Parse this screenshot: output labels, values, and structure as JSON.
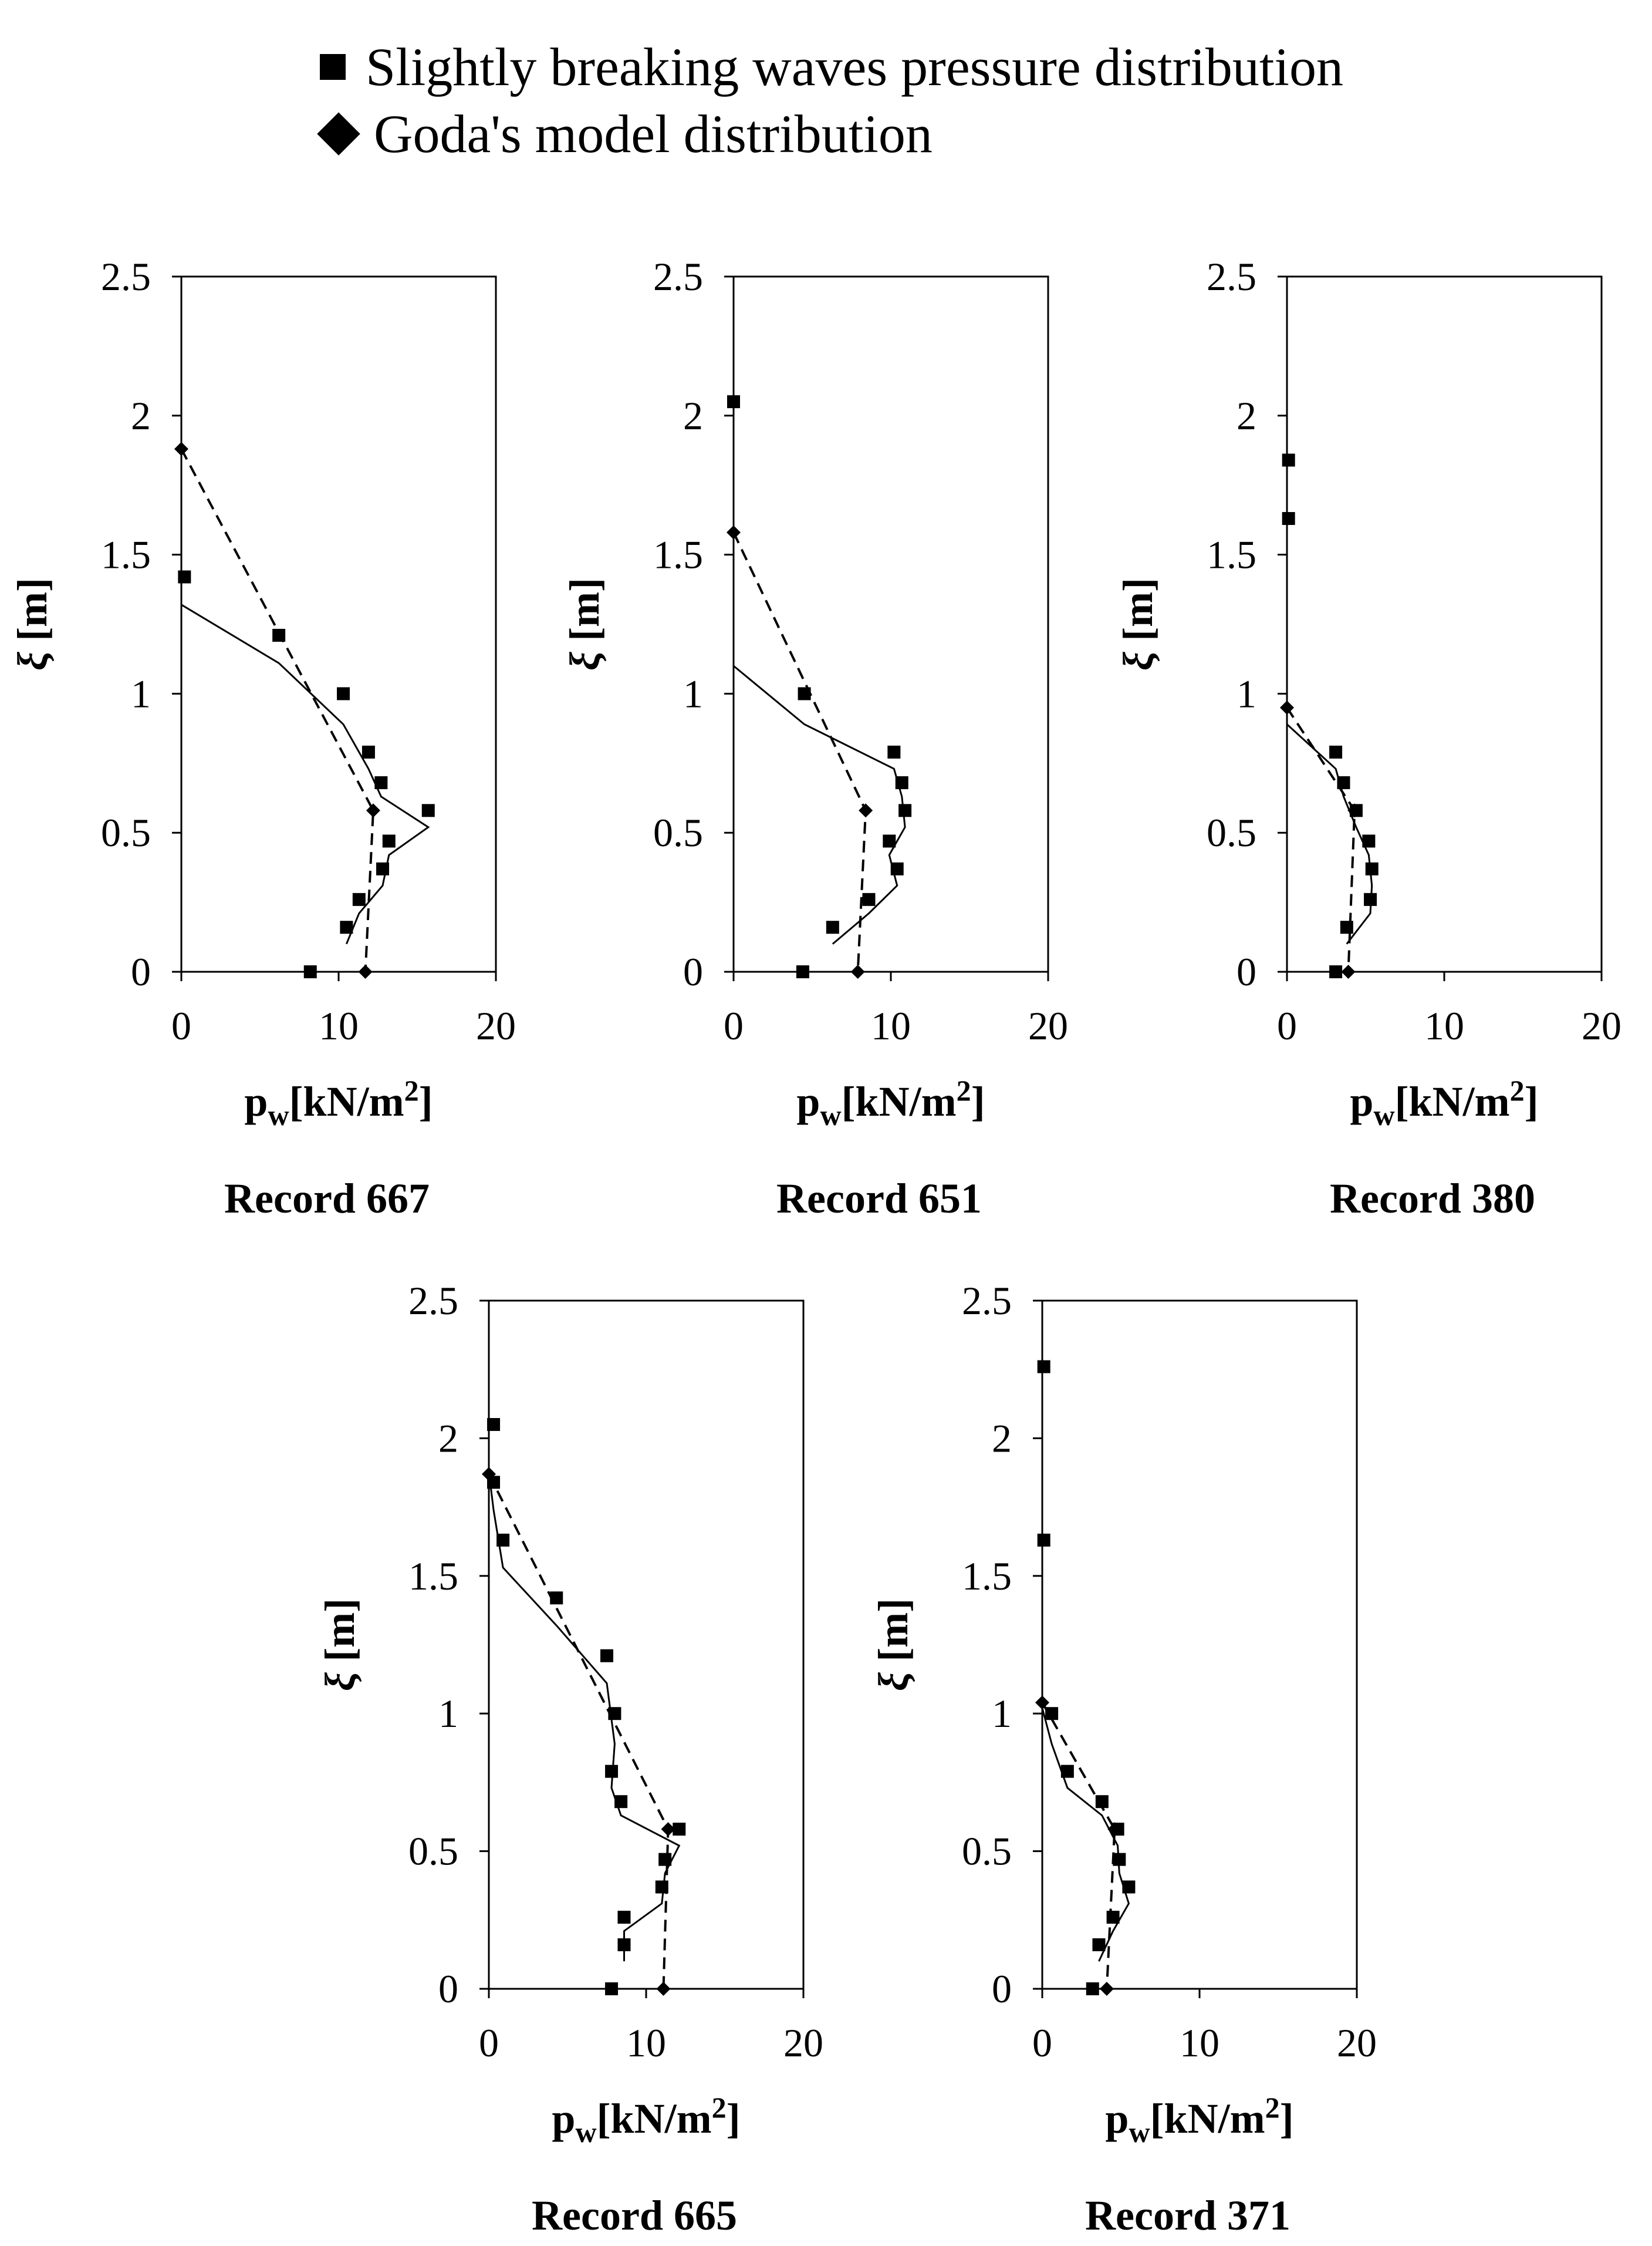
{
  "legend": {
    "measured": "Slightly breaking waves pressure distribution",
    "goda": "Goda's model distribution"
  },
  "chart_data": [
    {
      "type": "scatter",
      "title": "Record 667",
      "xlabel": {
        "base": "p",
        "sub": "w",
        "unit": "[kN/m",
        "sup": "2",
        "close": "]"
      },
      "ylabel": {
        "sym": "ξ",
        "unit": " [m]"
      },
      "xlim": [
        0,
        20
      ],
      "ylim": [
        0,
        2.5
      ],
      "xticks": [
        "0",
        "10",
        "20"
      ],
      "yticks": [
        "0",
        "0.5",
        "1",
        "1.5",
        "2",
        "2.5"
      ],
      "series": [
        {
          "marker": "square",
          "line": "none",
          "points": [
            [
              0.2,
              1.42
            ],
            [
              6.2,
              1.21
            ],
            [
              10.3,
              1.0
            ],
            [
              11.9,
              0.79
            ],
            [
              12.7,
              0.68
            ],
            [
              15.7,
              0.58
            ],
            [
              13.2,
              0.47
            ],
            [
              12.8,
              0.37
            ],
            [
              11.3,
              0.26
            ],
            [
              10.5,
              0.16
            ],
            [
              8.2,
              0.0
            ]
          ]
        },
        {
          "marker": "diamond",
          "line": "dashed",
          "points": [
            [
              0,
              1.88
            ],
            [
              12.2,
              0.58
            ],
            [
              11.7,
              0.0
            ]
          ]
        },
        {
          "marker": "none",
          "line": "solid",
          "points": [
            [
              0,
              1.32
            ],
            [
              6.2,
              1.11
            ],
            [
              10.3,
              0.89
            ],
            [
              11.9,
              0.73
            ],
            [
              12.7,
              0.63
            ],
            [
              15.7,
              0.52
            ],
            [
              13.2,
              0.42
            ],
            [
              12.8,
              0.31
            ],
            [
              11.3,
              0.21
            ],
            [
              10.5,
              0.1
            ]
          ]
        }
      ]
    },
    {
      "type": "scatter",
      "title": "Record 651",
      "xlabel": {
        "base": "p",
        "sub": "w",
        "unit": "[kN/m",
        "sup": "2",
        "close": "]"
      },
      "ylabel": {
        "sym": "ξ",
        "unit": " [m]"
      },
      "xlim": [
        0,
        20
      ],
      "ylim": [
        0,
        2.5
      ],
      "xticks": [
        "0",
        "10",
        "20"
      ],
      "yticks": [
        "0",
        "0.5",
        "1",
        "1.5",
        "2",
        "2.5"
      ],
      "series": [
        {
          "marker": "square",
          "line": "none",
          "points": [
            [
              0,
              2.05
            ],
            [
              4.5,
              1.0
            ],
            [
              10.2,
              0.79
            ],
            [
              10.7,
              0.68
            ],
            [
              10.9,
              0.58
            ],
            [
              9.9,
              0.47
            ],
            [
              10.4,
              0.37
            ],
            [
              8.6,
              0.26
            ],
            [
              6.3,
              0.16
            ],
            [
              4.4,
              0.0
            ]
          ]
        },
        {
          "marker": "diamond",
          "line": "dashed",
          "points": [
            [
              0,
              1.58
            ],
            [
              8.4,
              0.58
            ],
            [
              7.9,
              0.0
            ]
          ]
        },
        {
          "marker": "none",
          "line": "solid",
          "points": [
            [
              0,
              1.1
            ],
            [
              4.5,
              0.89
            ],
            [
              10.2,
              0.73
            ],
            [
              10.7,
              0.63
            ],
            [
              10.9,
              0.52
            ],
            [
              9.9,
              0.42
            ],
            [
              10.4,
              0.31
            ],
            [
              8.6,
              0.21
            ],
            [
              6.3,
              0.1
            ]
          ]
        }
      ]
    },
    {
      "type": "scatter",
      "title": "Record 380",
      "xlabel": {
        "base": "p",
        "sub": "w",
        "unit": "[kN/m",
        "sup": "2",
        "close": "]"
      },
      "ylabel": {
        "sym": "ξ",
        "unit": " [m]"
      },
      "xlim": [
        0,
        20
      ],
      "ylim": [
        0,
        2.5
      ],
      "xticks": [
        "0",
        "10",
        "20"
      ],
      "yticks": [
        "0",
        "0.5",
        "1",
        "1.5",
        "2",
        "2.5"
      ],
      "series": [
        {
          "marker": "square",
          "line": "none",
          "points": [
            [
              0.1,
              1.84
            ],
            [
              0.1,
              1.63
            ],
            [
              3.1,
              0.79
            ],
            [
              3.6,
              0.68
            ],
            [
              4.4,
              0.58
            ],
            [
              5.2,
              0.47
            ],
            [
              5.4,
              0.37
            ],
            [
              5.3,
              0.26
            ],
            [
              3.8,
              0.16
            ],
            [
              3.1,
              0.0
            ]
          ]
        },
        {
          "marker": "diamond",
          "line": "dashed",
          "points": [
            [
              0,
              0.95
            ],
            [
              4.3,
              0.58
            ],
            [
              3.9,
              0.0
            ]
          ]
        },
        {
          "marker": "none",
          "line": "solid",
          "points": [
            [
              0,
              0.89
            ],
            [
              3.1,
              0.73
            ],
            [
              3.6,
              0.63
            ],
            [
              4.4,
              0.52
            ],
            [
              5.2,
              0.42
            ],
            [
              5.4,
              0.31
            ],
            [
              5.3,
              0.21
            ],
            [
              3.8,
              0.1
            ]
          ]
        }
      ]
    },
    {
      "type": "scatter",
      "title": "Record 665",
      "xlabel": {
        "base": "p",
        "sub": "w",
        "unit": "[kN/m",
        "sup": "2",
        "close": "]"
      },
      "ylabel": {
        "sym": "ξ",
        "unit": " [m]"
      },
      "xlim": [
        0,
        20
      ],
      "ylim": [
        0,
        2.5
      ],
      "xticks": [
        "0",
        "10",
        "20"
      ],
      "yticks": [
        "0",
        "0.5",
        "1",
        "1.5",
        "2",
        "2.5"
      ],
      "series": [
        {
          "marker": "square",
          "line": "none",
          "points": [
            [
              0.3,
              2.05
            ],
            [
              0.3,
              1.84
            ],
            [
              0.9,
              1.63
            ],
            [
              4.3,
              1.42
            ],
            [
              7.5,
              1.21
            ],
            [
              8.0,
              1.0
            ],
            [
              7.8,
              0.79
            ],
            [
              8.4,
              0.68
            ],
            [
              12.1,
              0.58
            ],
            [
              11.2,
              0.47
            ],
            [
              11.0,
              0.37
            ],
            [
              8.6,
              0.26
            ],
            [
              8.6,
              0.16
            ],
            [
              7.8,
              0.0
            ]
          ]
        },
        {
          "marker": "diamond",
          "line": "dashed",
          "points": [
            [
              0,
              1.87
            ],
            [
              11.4,
              0.58
            ],
            [
              11.1,
              0.0
            ]
          ]
        },
        {
          "marker": "none",
          "line": "solid",
          "points": [
            [
              0,
              1.88
            ],
            [
              0.3,
              1.74
            ],
            [
              0.9,
              1.53
            ],
            [
              4.3,
              1.32
            ],
            [
              7.5,
              1.11
            ],
            [
              8.0,
              0.89
            ],
            [
              7.8,
              0.73
            ],
            [
              8.4,
              0.63
            ],
            [
              12.1,
              0.52
            ],
            [
              11.2,
              0.42
            ],
            [
              11.0,
              0.31
            ],
            [
              8.6,
              0.21
            ],
            [
              8.6,
              0.1
            ]
          ]
        }
      ]
    },
    {
      "type": "scatter",
      "title": "Record 371",
      "xlabel": {
        "base": "p",
        "sub": "w",
        "unit": "[kN/m",
        "sup": "2",
        "close": "]"
      },
      "ylabel": {
        "sym": "ξ",
        "unit": " [m]"
      },
      "xlim": [
        0,
        20
      ],
      "ylim": [
        0,
        2.5
      ],
      "xticks": [
        "0",
        "10",
        "20"
      ],
      "yticks": [
        "0",
        "0.5",
        "1",
        "1.5",
        "2",
        "2.5"
      ],
      "series": [
        {
          "marker": "square",
          "line": "none",
          "points": [
            [
              0.1,
              2.26
            ],
            [
              0.1,
              1.63
            ],
            [
              0.6,
              1.0
            ],
            [
              1.6,
              0.79
            ],
            [
              3.8,
              0.68
            ],
            [
              4.8,
              0.58
            ],
            [
              4.9,
              0.47
            ],
            [
              5.5,
              0.37
            ],
            [
              4.5,
              0.26
            ],
            [
              3.6,
              0.16
            ],
            [
              3.2,
              0.0
            ]
          ]
        },
        {
          "marker": "diamond",
          "line": "dashed",
          "points": [
            [
              0,
              1.04
            ],
            [
              4.6,
              0.58
            ],
            [
              4.1,
              0.0
            ]
          ]
        },
        {
          "marker": "none",
          "line": "solid",
          "points": [
            [
              0,
              1.02
            ],
            [
              0.6,
              0.89
            ],
            [
              1.6,
              0.73
            ],
            [
              3.8,
              0.63
            ],
            [
              4.8,
              0.52
            ],
            [
              4.9,
              0.42
            ],
            [
              5.5,
              0.31
            ],
            [
              4.5,
              0.21
            ],
            [
              3.6,
              0.1
            ]
          ]
        }
      ]
    }
  ]
}
